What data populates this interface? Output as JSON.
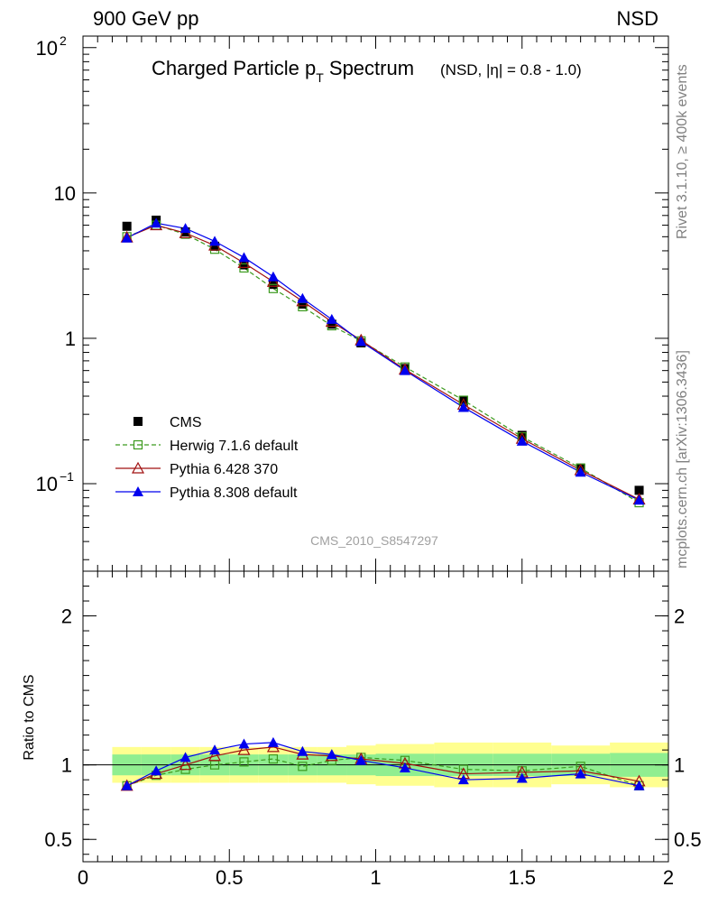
{
  "header": {
    "left_label": "900 GeV pp",
    "right_label": "NSD"
  },
  "title": {
    "main": "Charged Particle p",
    "sub": "T",
    "main_end": " Spectrum",
    "qualifier": "(NSD, |η| = 0.8 - 1.0)"
  },
  "analysis_tag": "CMS_2010_S8547297",
  "side_labels": {
    "upper": "Rivet 3.1.10, ≥ 400k events",
    "lower": "mcplots.cern.ch [arXiv:1306.3436]"
  },
  "ratio_ylabel": "Ratio to CMS",
  "colors": {
    "CMS": "#000000",
    "Herwig": "#3c9a1e",
    "Pythia6": "#a01010",
    "Pythia8": "#0000ee",
    "band_inner": "#90ee90",
    "band_outer": "#ffff90"
  },
  "chart_data": [
    {
      "type": "scatter",
      "panel": "main",
      "yscale": "log",
      "xlim": [
        0,
        2
      ],
      "ylim": [
        0.025,
        120
      ],
      "yticks": [
        {
          "value": 100,
          "label": "10",
          "exp": "2"
        },
        {
          "value": 10,
          "label": "10",
          "exp": ""
        },
        {
          "value": 1,
          "label": "1",
          "exp": ""
        },
        {
          "value": 0.1,
          "label": "10",
          "exp": "−1"
        }
      ],
      "x": [
        0.15,
        0.25,
        0.35,
        0.45,
        0.55,
        0.65,
        0.75,
        0.85,
        0.95,
        1.1,
        1.3,
        1.5,
        1.7,
        1.9
      ],
      "series": [
        {
          "name": "CMS",
          "marker": "filled-square",
          "values": [
            5.9,
            6.5,
            5.4,
            4.3,
            3.2,
            2.35,
            1.72,
            1.25,
            0.93,
            0.62,
            0.37,
            0.215,
            0.128,
            0.09
          ]
        },
        {
          "name": "Herwig 7.1.6 default",
          "marker": "open-square",
          "dashed": true,
          "values": [
            5.0,
            6.0,
            5.2,
            4.1,
            3.05,
            2.2,
            1.65,
            1.22,
            0.96,
            0.635,
            0.375,
            0.21,
            0.128,
            0.074
          ]
        },
        {
          "name": "Pythia 6.428 370",
          "marker": "open-triangle",
          "values": [
            4.95,
            6.0,
            5.3,
            4.35,
            3.3,
            2.45,
            1.8,
            1.3,
            0.97,
            0.61,
            0.35,
            0.204,
            0.124,
            0.078
          ]
        },
        {
          "name": "Pythia 8.308 default",
          "marker": "filled-triangle",
          "values": [
            4.9,
            6.2,
            5.7,
            4.65,
            3.6,
            2.65,
            1.88,
            1.35,
            0.95,
            0.6,
            0.335,
            0.196,
            0.12,
            0.077
          ]
        }
      ],
      "legend_position": "lower-left"
    },
    {
      "type": "line",
      "panel": "ratio",
      "xlim": [
        0,
        2
      ],
      "ylim": [
        0.35,
        2.3
      ],
      "xticks": [
        {
          "value": 0,
          "label": "0"
        },
        {
          "value": 0.5,
          "label": "0.5"
        },
        {
          "value": 1,
          "label": "1"
        },
        {
          "value": 1.5,
          "label": "1.5"
        },
        {
          "value": 2,
          "label": "2"
        }
      ],
      "yticks": [
        {
          "value": 0.5,
          "label": "0.5"
        },
        {
          "value": 1,
          "label": "1"
        },
        {
          "value": 2,
          "label": "2"
        }
      ],
      "bands": {
        "x_edges": [
          0.1,
          0.2,
          0.3,
          0.4,
          0.5,
          0.6,
          0.7,
          0.8,
          0.9,
          1.0,
          1.2,
          1.4,
          1.6,
          1.8,
          2.0
        ],
        "inner_half_width": [
          0.07,
          0.07,
          0.07,
          0.07,
          0.07,
          0.07,
          0.07,
          0.07,
          0.07,
          0.075,
          0.075,
          0.075,
          0.075,
          0.08
        ],
        "outer_half_width": [
          0.12,
          0.12,
          0.12,
          0.12,
          0.12,
          0.12,
          0.12,
          0.12,
          0.13,
          0.14,
          0.15,
          0.15,
          0.13,
          0.15
        ]
      },
      "x": [
        0.15,
        0.25,
        0.35,
        0.45,
        0.55,
        0.65,
        0.75,
        0.85,
        0.95,
        1.1,
        1.3,
        1.5,
        1.7,
        1.9
      ],
      "series": [
        {
          "name": "Herwig 7.1.6 default",
          "values": [
            0.86,
            0.93,
            0.97,
            1.0,
            1.02,
            1.04,
            0.99,
            1.03,
            1.05,
            1.03,
            0.97,
            0.96,
            0.99,
            0.86
          ]
        },
        {
          "name": "Pythia 6.428 370",
          "values": [
            0.86,
            0.94,
            1.0,
            1.06,
            1.1,
            1.12,
            1.07,
            1.06,
            1.04,
            1.01,
            0.94,
            0.95,
            0.96,
            0.89
          ]
        },
        {
          "name": "Pythia 8.308 default",
          "values": [
            0.86,
            0.96,
            1.05,
            1.1,
            1.14,
            1.15,
            1.09,
            1.07,
            1.03,
            0.98,
            0.9,
            0.91,
            0.94,
            0.86
          ]
        }
      ]
    }
  ]
}
